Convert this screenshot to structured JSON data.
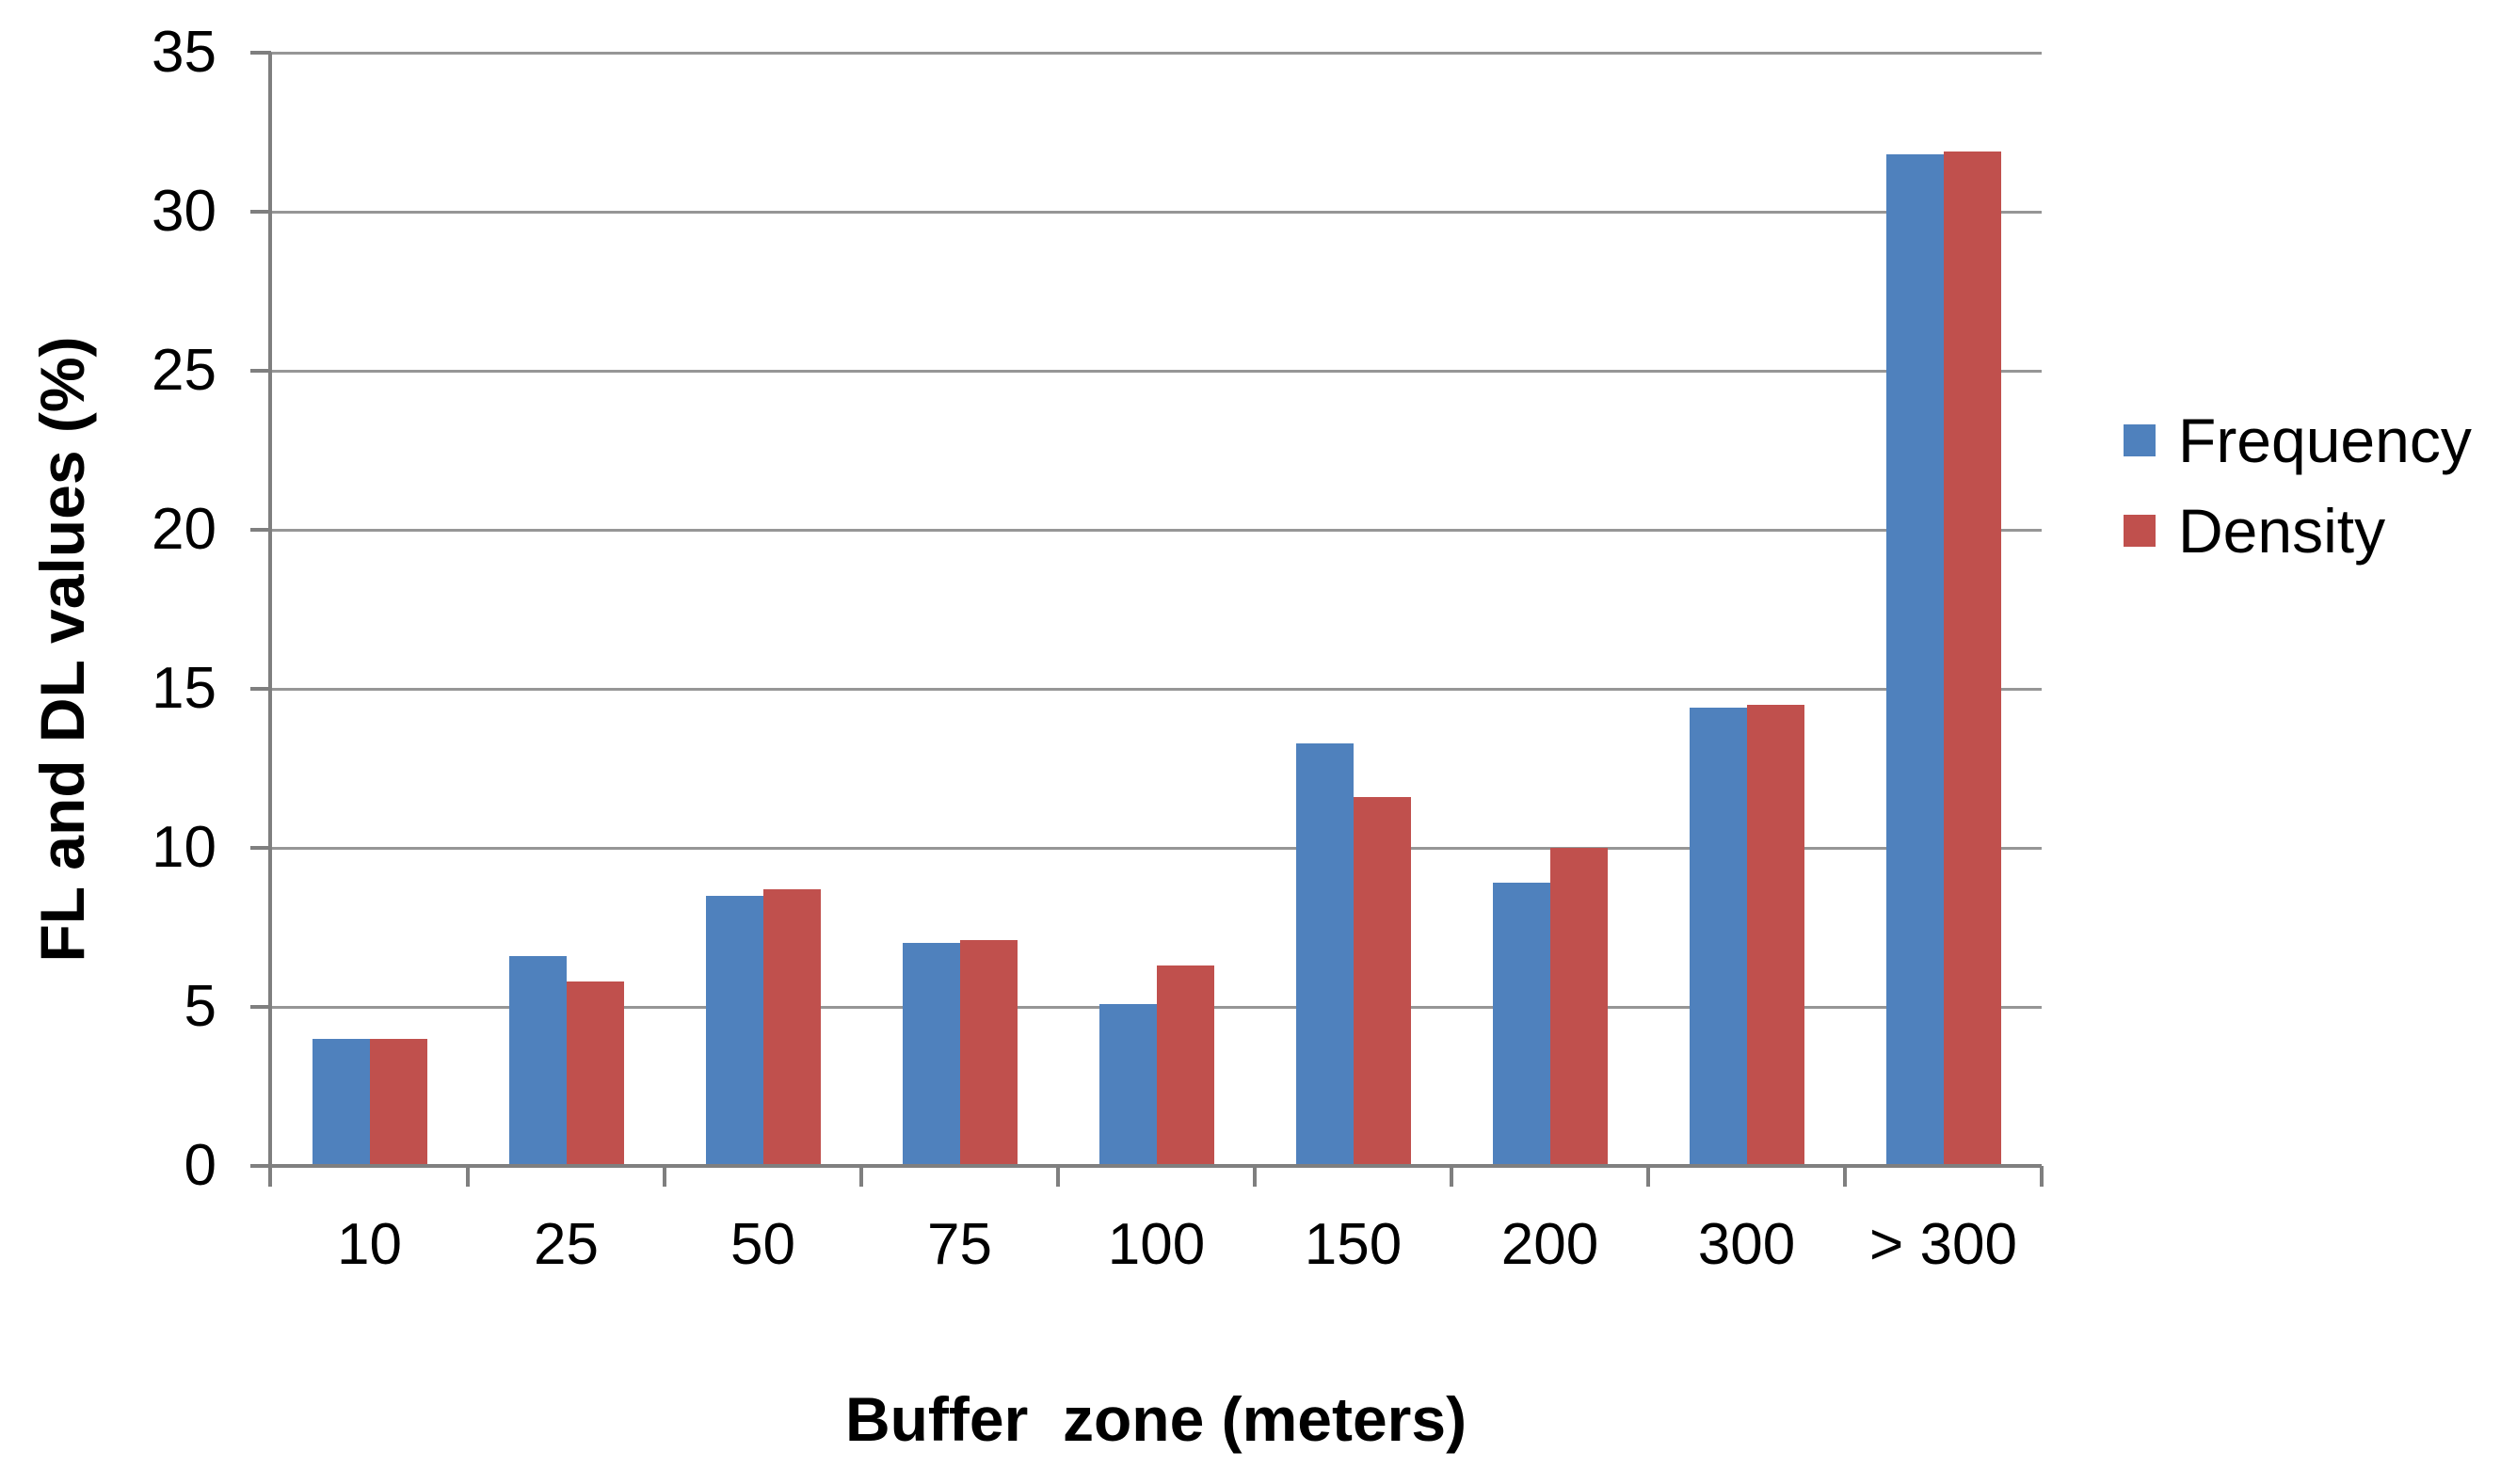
{
  "chart_data": {
    "type": "bar",
    "title": "",
    "xlabel": "Buffer  zone (meters)",
    "ylabel": "FL and DL values (%)",
    "categories": [
      "10",
      "25",
      "50",
      "75",
      "100",
      "150",
      "200",
      "300",
      "> 300"
    ],
    "series": [
      {
        "name": "Frequency",
        "color": "#4F81BD",
        "values": [
          4.0,
          6.6,
          8.5,
          7.0,
          5.1,
          13.3,
          8.9,
          14.4,
          31.8
        ]
      },
      {
        "name": "Density",
        "color": "#C0504D",
        "values": [
          4.0,
          5.8,
          8.7,
          7.1,
          6.3,
          11.6,
          10.0,
          14.5,
          31.9
        ]
      }
    ],
    "ylim": [
      0,
      35
    ],
    "yticks": [
      0,
      5,
      10,
      15,
      20,
      25,
      30,
      35
    ],
    "grid": "horizontal",
    "legend_position": "right"
  },
  "colors": {
    "background": "#FFFFFF",
    "gridline": "#969696",
    "axis": "#7F7F7F",
    "text": "#000000"
  }
}
